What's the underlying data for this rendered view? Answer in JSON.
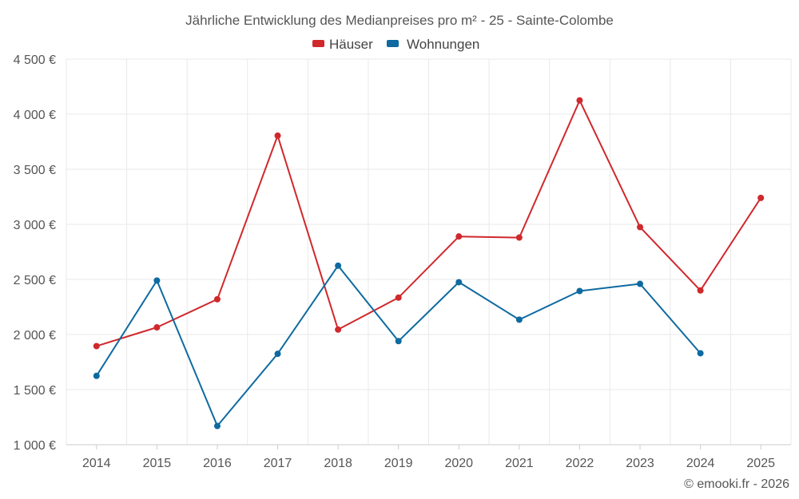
{
  "chart_data": {
    "type": "line",
    "title": "Jährliche Entwicklung des Medianpreises pro m² - 25 - Sainte-Colombe",
    "xlabel": "",
    "ylabel": "",
    "categories": [
      "2014",
      "2015",
      "2016",
      "2017",
      "2018",
      "2019",
      "2020",
      "2021",
      "2022",
      "2023",
      "2024",
      "2025"
    ],
    "ylim": [
      1000,
      4500
    ],
    "yticks": [
      1000,
      1500,
      2000,
      2500,
      3000,
      3500,
      4000,
      4500
    ],
    "ytick_labels": [
      "1 000 €",
      "1 500 €",
      "2 000 €",
      "2 500 €",
      "3 000 €",
      "3 500 €",
      "4 000 €",
      "4 500 €"
    ],
    "grid": true,
    "legend_position": "top-center",
    "series": [
      {
        "name": "Häuser",
        "color": "#d0282c",
        "values": [
          1895,
          2065,
          2320,
          3805,
          2045,
          2335,
          2890,
          2880,
          4125,
          2975,
          2400,
          3240
        ]
      },
      {
        "name": "Wohnungen",
        "color": "#0e6aa0",
        "values": [
          1625,
          2490,
          1170,
          1825,
          2625,
          1940,
          2475,
          2135,
          2395,
          2460,
          1830,
          null
        ]
      }
    ],
    "credit": "© emooki.fr - 2026"
  }
}
